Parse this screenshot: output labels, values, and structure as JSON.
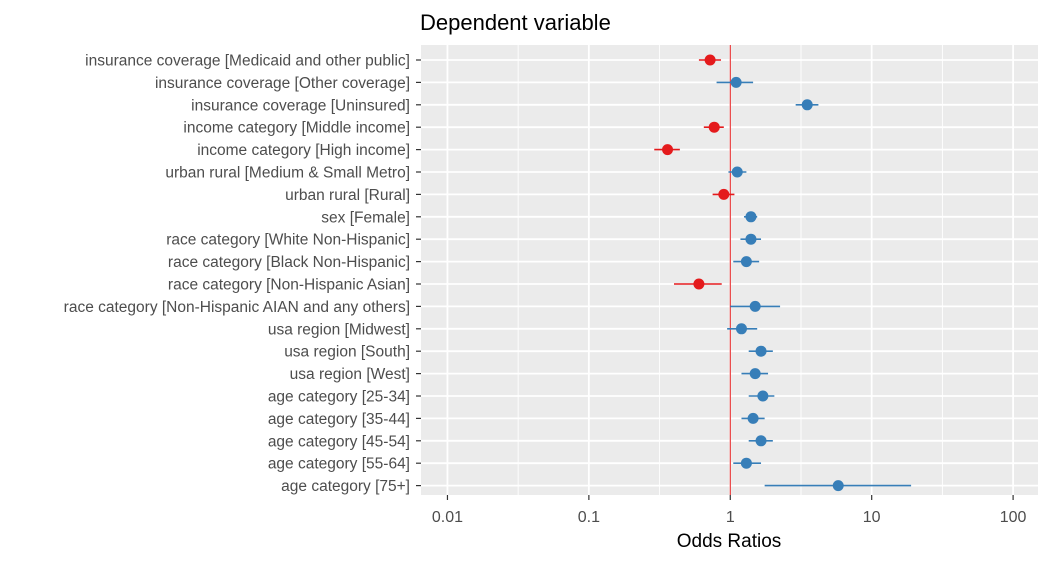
{
  "chart_data": {
    "type": "forest",
    "title": "Dependent variable",
    "xlabel": "Odds Ratios",
    "ylabel": "",
    "x_scale": "log10",
    "xlim": [
      0.0065,
      150
    ],
    "x_ticks": [
      {
        "value": 0.01,
        "label": "0.01"
      },
      {
        "value": 0.1,
        "label": "0.1"
      },
      {
        "value": 1,
        "label": "1"
      },
      {
        "value": 10,
        "label": "10"
      },
      {
        "value": 100,
        "label": "100"
      }
    ],
    "reference_line": 1,
    "grid": true,
    "colors": {
      "panel_bg": "#EBEBEB",
      "grid": "#FFFFFF",
      "positive": "#377EB8",
      "negative": "#E41A1C",
      "reference": "#E41A1C",
      "text": "#4D4D4D",
      "title": "#000000"
    },
    "terms": [
      {
        "label": "insurance coverage [Medicaid and other public]",
        "estimate": 0.72,
        "low": 0.6,
        "high": 0.86,
        "direction": "negative"
      },
      {
        "label": "insurance coverage [Other coverage]",
        "estimate": 1.1,
        "low": 0.8,
        "high": 1.45,
        "direction": "positive"
      },
      {
        "label": "insurance coverage [Uninsured]",
        "estimate": 3.5,
        "low": 2.9,
        "high": 4.2,
        "direction": "positive"
      },
      {
        "label": "income category [Middle income]",
        "estimate": 0.77,
        "low": 0.65,
        "high": 0.9,
        "direction": "negative"
      },
      {
        "label": "income category [High income]",
        "estimate": 0.36,
        "low": 0.29,
        "high": 0.44,
        "direction": "negative"
      },
      {
        "label": "urban rural [Medium & Small Metro]",
        "estimate": 1.12,
        "low": 0.97,
        "high": 1.3,
        "direction": "positive"
      },
      {
        "label": "urban rural [Rural]",
        "estimate": 0.9,
        "low": 0.75,
        "high": 1.07,
        "direction": "negative"
      },
      {
        "label": "sex [Female]",
        "estimate": 1.4,
        "low": 1.25,
        "high": 1.55,
        "direction": "positive"
      },
      {
        "label": "race category [White Non-Hispanic]",
        "estimate": 1.4,
        "low": 1.18,
        "high": 1.65,
        "direction": "positive"
      },
      {
        "label": "race category [Black Non-Hispanic]",
        "estimate": 1.3,
        "low": 1.05,
        "high": 1.6,
        "direction": "positive"
      },
      {
        "label": "race category [Non-Hispanic Asian]",
        "estimate": 0.6,
        "low": 0.4,
        "high": 0.87,
        "direction": "negative"
      },
      {
        "label": "race category [Non-Hispanic AIAN and any others]",
        "estimate": 1.5,
        "low": 1.0,
        "high": 2.25,
        "direction": "positive"
      },
      {
        "label": "usa region [Midwest]",
        "estimate": 1.2,
        "low": 0.95,
        "high": 1.55,
        "direction": "positive"
      },
      {
        "label": "usa region [South]",
        "estimate": 1.65,
        "low": 1.35,
        "high": 2.0,
        "direction": "positive"
      },
      {
        "label": "usa region [West]",
        "estimate": 1.5,
        "low": 1.2,
        "high": 1.85,
        "direction": "positive"
      },
      {
        "label": "age category [25-34]",
        "estimate": 1.7,
        "low": 1.35,
        "high": 2.05,
        "direction": "positive"
      },
      {
        "label": "age category [35-44]",
        "estimate": 1.45,
        "low": 1.2,
        "high": 1.75,
        "direction": "positive"
      },
      {
        "label": "age category [45-54]",
        "estimate": 1.65,
        "low": 1.35,
        "high": 2.0,
        "direction": "positive"
      },
      {
        "label": "age category [55-64]",
        "estimate": 1.3,
        "low": 1.05,
        "high": 1.65,
        "direction": "positive"
      },
      {
        "label": "age category [75+]",
        "estimate": 5.8,
        "low": 1.75,
        "high": 19.0,
        "direction": "positive"
      }
    ]
  }
}
